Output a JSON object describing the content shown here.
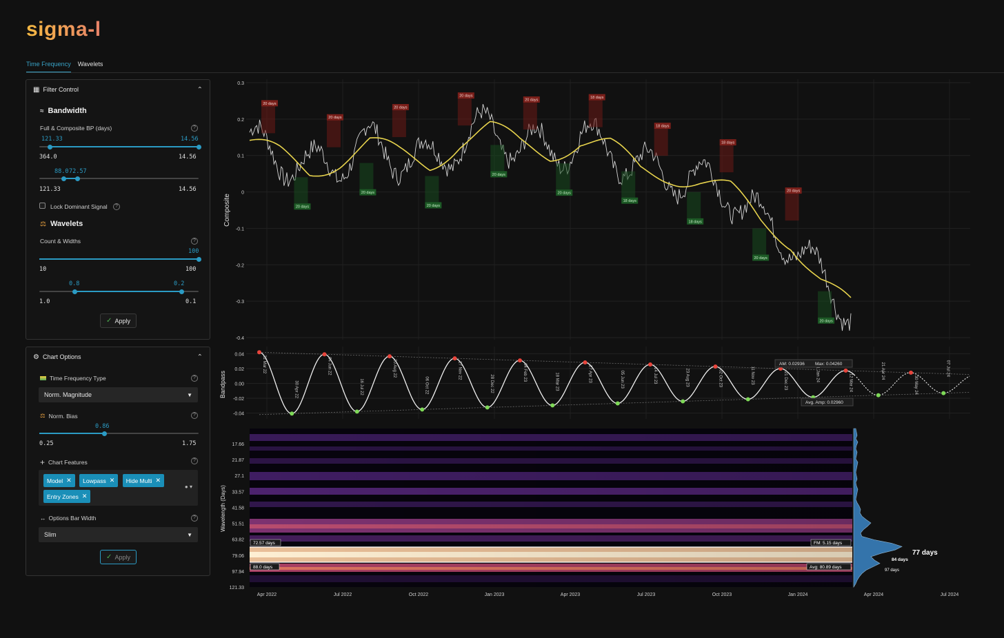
{
  "app": {
    "logo": "sigma-l"
  },
  "tabs": [
    {
      "label": "Time Frequency",
      "active": true
    },
    {
      "label": "Wavelets",
      "active": false
    }
  ],
  "filter_control": {
    "title": "Filter Control",
    "bandwidth": {
      "title": "Bandwidth",
      "label": "Full & Composite BP (days)",
      "slider1": {
        "low_val": "121.33",
        "high_val": "14.56",
        "min": "364.0",
        "max": "14.56",
        "low_frac": 0.065,
        "high_frac": 1.0
      },
      "slider2": {
        "low_val": "88.0",
        "high_val": "72.57",
        "min": "121.33",
        "max": "14.56",
        "low_frac": 0.15,
        "high_frac": 0.24
      }
    },
    "lock_label": "Lock Dominant Signal",
    "wavelets": {
      "title": "Wavelets",
      "label": "Count & Widths",
      "slider1": {
        "val": "100",
        "min": "10",
        "max": "100",
        "frac": 1.0
      },
      "slider2": {
        "low_val": "0.8",
        "high_val": "0.2",
        "min": "1.0",
        "max": "0.1",
        "low_frac": 0.22,
        "high_frac": 0.89
      }
    },
    "apply": "Apply"
  },
  "chart_options": {
    "title": "Chart Options",
    "tf_type": {
      "label": "Time Frequency Type",
      "value": "Norm. Magnitude"
    },
    "norm_bias": {
      "label": "Norm. Bias",
      "val": "0.86",
      "min": "0.25",
      "max": "1.75",
      "frac": 0.41
    },
    "features": {
      "label": "Chart Features",
      "chips": [
        "Model",
        "Lowpass",
        "Hide Multi",
        "Entry Zones"
      ]
    },
    "bar_width": {
      "label": "Options Bar Width",
      "value": "Slim"
    },
    "apply": "Apply"
  },
  "chart_data": [
    {
      "type": "line",
      "ylabel": "Composite",
      "ylim": [
        -0.4,
        0.3
      ],
      "yticks": [
        "0.3",
        "0.2",
        "0.1",
        "0",
        "-0.1",
        "-0.2",
        "-0.3",
        "-0.4"
      ],
      "series": [
        {
          "color": "#e8d44d",
          "x": [
            0,
            0.05,
            0.1,
            0.15,
            0.2,
            0.25,
            0.3,
            0.35,
            0.4,
            0.45,
            0.5,
            0.55,
            0.6,
            0.65,
            0.7,
            0.75,
            0.8,
            0.85,
            0.9,
            0.95,
            1.0
          ],
          "values": [
            0.13,
            0.1,
            0.06,
            0.09,
            0.13,
            0.1,
            0.08,
            0.14,
            0.17,
            0.13,
            0.11,
            0.14,
            0.12,
            0.06,
            0.05,
            0.03,
            0.0,
            -0.08,
            -0.13,
            -0.24,
            -0.32
          ]
        }
      ],
      "cycle_labels": [
        {
          "text": "20 days",
          "kind": "top"
        },
        {
          "text": "20 days",
          "kind": "bottom"
        },
        {
          "text": "20 days",
          "kind": "top"
        },
        {
          "text": "20 days",
          "kind": "bottom"
        },
        {
          "text": "20 days",
          "kind": "top"
        },
        {
          "text": "20 days",
          "kind": "bottom"
        },
        {
          "text": "20 days",
          "kind": "top"
        },
        {
          "text": "20 days",
          "kind": "bottom"
        },
        {
          "text": "20 days",
          "kind": "top"
        },
        {
          "text": "20 days",
          "kind": "bottom"
        },
        {
          "text": "18 days",
          "kind": "top"
        },
        {
          "text": "18 days",
          "kind": "bottom"
        },
        {
          "text": "18 days",
          "kind": "top"
        },
        {
          "text": "18 days",
          "kind": "bottom"
        },
        {
          "text": "18 days",
          "kind": "top"
        },
        {
          "text": "20 days",
          "kind": "bottom"
        },
        {
          "text": "20 days",
          "kind": "top"
        },
        {
          "text": "20 days",
          "kind": "bottom"
        }
      ]
    },
    {
      "type": "line",
      "ylabel": "Bandpass",
      "ylim": [
        -0.045,
        0.045
      ],
      "yticks": [
        "0.04",
        "0.02",
        "0.00",
        "-0.02",
        "-0.04"
      ],
      "peaks": [
        "22 Mar 22",
        "04 Jun 22",
        "20 Aug 22",
        "17 Nov 22",
        "04 Feb 23",
        "27 Apr 23",
        "14 Jul 23",
        "02 Oct 23",
        "21 Dec 23",
        "12 Mar 24",
        "30 May 24"
      ],
      "troughs": [
        "30 Apr 22",
        "16 Jul 22",
        "06 Oct 22",
        "28 Dec 22",
        "18 Mar 23",
        "05 Jun 23",
        "23 Aug 23",
        "11 Nov 23",
        "31 Jan 24",
        "21 Apr 24",
        "07 Jul 24"
      ],
      "annotations": {
        "am": "AM: 0.02936",
        "max": "Max: 0.04260",
        "avg_amp": "Avg. Amp: 0.02960"
      }
    },
    {
      "type": "heatmap",
      "ylabel": "Wavelength (Days)",
      "yticks": [
        "17.66",
        "21.87",
        "27.1",
        "33.57",
        "41.58",
        "51.51",
        "63.82",
        "79.06",
        "97.94",
        "121.33"
      ],
      "xticks": [
        "Apr 2022",
        "Jul 2022",
        "Oct 2022",
        "Jan 2023",
        "Apr 2023",
        "Jul 2023",
        "Oct 2023",
        "Jan 2024",
        "Apr 2024",
        "Jul 2024"
      ],
      "band_labels": {
        "top": "72.57 days",
        "bottom": "88.0 days",
        "fm": "FM: 5.15 days",
        "avg": "Avg: 80.89 days"
      },
      "peak_labels": [
        "77 days",
        "84 days",
        "97 days"
      ]
    }
  ]
}
